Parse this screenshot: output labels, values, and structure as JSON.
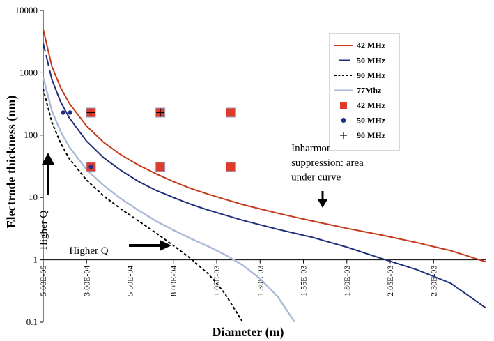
{
  "chart_data": {
    "type": "line",
    "xlabel": "Diameter (m)",
    "ylabel": "Electrode thickness (nm)",
    "yscale": "log",
    "ylim": [
      0.1,
      10000
    ],
    "xlim": [
      5e-05,
      0.0026
    ],
    "x_ticks": [
      "5.00E-05",
      "3.00E-04",
      "5.50E-04",
      "8.00E-04",
      "1.05E-03",
      "1.30E-03",
      "1.55E-03",
      "1.80E-03",
      "2.05E-03",
      "2.30E-03"
    ],
    "y_ticks": [
      "0.1",
      "1",
      "10",
      "100",
      "1000",
      "10000"
    ],
    "grid": false,
    "legend_position": "top-right",
    "series": [
      {
        "name": "42 MHz",
        "kind": "line",
        "color": "#c43a1c",
        "dash": "solid",
        "x": [
          5e-05,
          0.0001,
          0.00015,
          0.0002,
          0.0003,
          0.0004,
          0.0005,
          0.0006,
          0.0007,
          0.0008,
          0.0009,
          0.001,
          0.0012,
          0.0014,
          0.0016,
          0.0018,
          0.002,
          0.0022,
          0.0024,
          0.0026
        ],
        "y": [
          5000,
          1270,
          580,
          325,
          140,
          76,
          48,
          33,
          24,
          18,
          14,
          11.3,
          7.7,
          5.6,
          4.2,
          3.2,
          2.5,
          1.9,
          1.4,
          0.93
        ]
      },
      {
        "name": "50 MHz",
        "kind": "line",
        "color": "#1f2f7a",
        "dash": "solid-with-dashed-start",
        "x": [
          5e-05,
          0.0001,
          0.00015,
          0.0002,
          0.0003,
          0.0004,
          0.0005,
          0.0006,
          0.0007,
          0.0008,
          0.0009,
          0.001,
          0.0012,
          0.0014,
          0.0016,
          0.0018,
          0.002,
          0.0022,
          0.0024,
          0.0026
        ],
        "y": [
          3000,
          780,
          345,
          190,
          80,
          43,
          27,
          18,
          13,
          10,
          7.8,
          6.3,
          4.3,
          3.1,
          2.3,
          1.6,
          1.05,
          0.7,
          0.42,
          0.17
        ]
      },
      {
        "name": "90 MHz",
        "kind": "line",
        "color": "#000000",
        "dash": "dashed",
        "x": [
          5e-05,
          0.0001,
          0.00015,
          0.0002,
          0.0003,
          0.0004,
          0.0005,
          0.0006,
          0.0007,
          0.0008,
          0.0009,
          0.001,
          0.00105,
          0.0011,
          0.0012
        ],
        "y": [
          550,
          160,
          75,
          42,
          19,
          10.5,
          6.5,
          4.2,
          2.7,
          1.7,
          1.05,
          0.6,
          0.42,
          0.28,
          0.1
        ]
      },
      {
        "name": "77Mhz",
        "kind": "line",
        "color": "#a9b9d8",
        "dash": "solid",
        "x": [
          5e-05,
          0.0001,
          0.00015,
          0.0002,
          0.0003,
          0.0004,
          0.0005,
          0.0006,
          0.0007,
          0.0008,
          0.0009,
          0.001,
          0.0011,
          0.0012,
          0.0013,
          0.0014,
          0.0015
        ],
        "y": [
          850,
          245,
          115,
          65,
          28,
          15.5,
          9.5,
          6.2,
          4.2,
          3.0,
          2.2,
          1.65,
          1.2,
          0.82,
          0.5,
          0.26,
          0.1
        ]
      },
      {
        "name": "42 MHz",
        "kind": "marker",
        "marker": "square",
        "color": "#e03a2a",
        "x": [
          0.000325,
          0.000325,
          0.000725,
          0.000725,
          0.00113,
          0.00113
        ],
        "y": [
          230,
          31,
          230,
          31,
          230,
          31
        ]
      },
      {
        "name": "50 MHz",
        "kind": "marker",
        "marker": "circle",
        "color": "#1f2f8a",
        "x": [
          0.000165,
          0.000205,
          0.000325
        ],
        "y": [
          230,
          230,
          31
        ]
      },
      {
        "name": "90 MHz",
        "kind": "marker",
        "marker": "plus",
        "color": "#000000",
        "x": [
          0.000325,
          0.000725
        ],
        "y": [
          230,
          230
        ]
      }
    ],
    "annotations": [
      {
        "text": "Inharmonic",
        "x": 0.00148,
        "y": 55
      },
      {
        "text": "suppression: area",
        "x": 0.00148,
        "y": 32
      },
      {
        "text": "under curve",
        "x": 0.00148,
        "y": 19
      },
      {
        "text": "Higher Q",
        "x": 0.0002,
        "y": 1.25
      }
    ],
    "rotated_annotation": {
      "text": "Higher Q"
    }
  }
}
